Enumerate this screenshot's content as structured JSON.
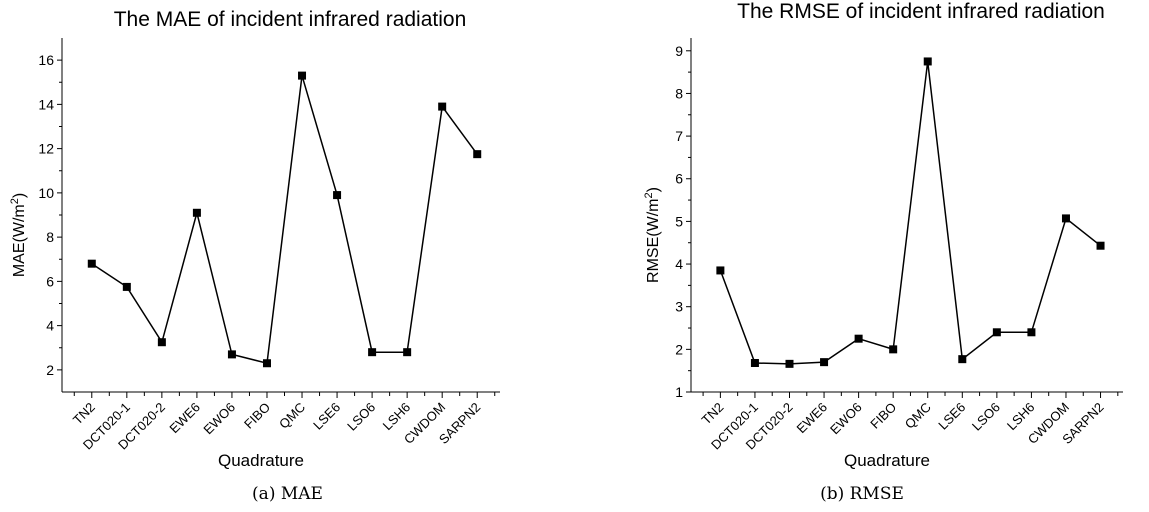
{
  "captions": [
    "(a) MAE",
    "(b) RMSE"
  ],
  "chart_data": [
    {
      "type": "line",
      "title": "The MAE of incident infrared radiation",
      "xlabel": "Quadrature",
      "ylabel": "MAE(W/m²)",
      "ylabel_parts": {
        "base": "MAE(W/m",
        "sup": "2",
        "tail": ")"
      },
      "categories": [
        "TN2",
        "DCT020-1",
        "DCT020-2",
        "EWE6",
        "EWO6",
        "FIBO",
        "QMC",
        "LSE6",
        "LSO6",
        "LSH6",
        "CWDOM",
        "SARPN2"
      ],
      "values": [
        6.8,
        5.75,
        3.25,
        9.1,
        2.7,
        2.3,
        15.3,
        9.9,
        2.8,
        2.8,
        13.9,
        11.75
      ],
      "ylim": [
        1,
        17
      ],
      "yticks": [
        2,
        4,
        6,
        8,
        10,
        12,
        14,
        16
      ],
      "ytick_labels": [
        "2",
        "4",
        "6",
        "8",
        "10",
        "12",
        "14",
        "16"
      ],
      "marker": "square",
      "line_color": "#000000",
      "grid": false
    },
    {
      "type": "line",
      "title": "The RMSE of incident infrared radiation",
      "xlabel": "Quadrature",
      "ylabel": "RMSE(W/m²)",
      "ylabel_parts": {
        "base": "RMSE(W/m",
        "sup": "2",
        "tail": ")"
      },
      "categories": [
        "TN2",
        "DCT020-1",
        "DCT020-2",
        "EWE6",
        "EWO6",
        "FIBO",
        "QMC",
        "LSE6",
        "LSO6",
        "LSH6",
        "CWDOM",
        "SARPN2"
      ],
      "values": [
        3.85,
        1.68,
        1.66,
        1.7,
        2.25,
        2.0,
        8.75,
        1.77,
        2.4,
        2.4,
        5.07,
        4.43
      ],
      "ylim": [
        1,
        9.3
      ],
      "yticks": [
        1,
        2,
        3,
        4,
        5,
        6,
        7,
        8,
        9
      ],
      "ytick_labels": [
        "1",
        "2",
        "3",
        "4",
        "5",
        "6",
        "7",
        "8",
        "9"
      ],
      "marker": "square",
      "line_color": "#000000",
      "grid": false
    }
  ]
}
